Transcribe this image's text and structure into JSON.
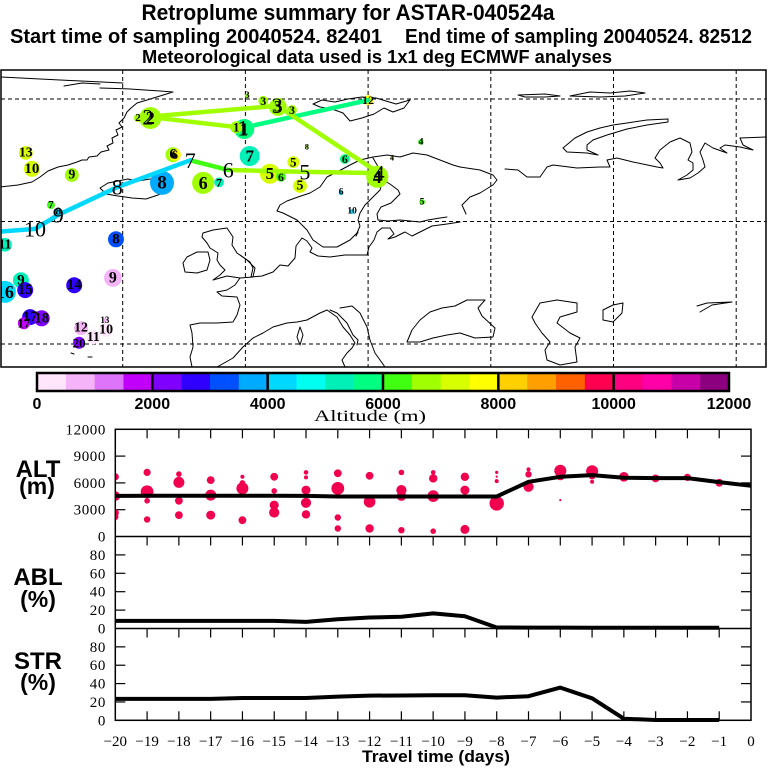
{
  "header": {
    "title": "Retroplume summary for ASTAR-040524a",
    "start_sampling": "Start time of sampling 20040524. 82401",
    "end_sampling": "End time of sampling 20040524. 82512",
    "met_data": "Meteorological data used is 1x1 deg ECMWF analyses"
  },
  "map": {
    "graticule": {
      "lons": [
        -20,
        0,
        20,
        40,
        60,
        80
      ],
      "lats": [
        80,
        60,
        40
      ]
    },
    "trajectory": [
      {
        "day": 0,
        "label": "",
        "lon": 20.0,
        "lat": 79.8,
        "alt_m": 5750
      },
      {
        "day": 1,
        "label": "1",
        "lon": -0.4,
        "lat": 75.3,
        "alt_m": 5750
      },
      {
        "day": 2,
        "label": "2",
        "lon": -15.9,
        "lat": 77.1,
        "alt_m": 6750
      },
      {
        "day": 3,
        "label": "3",
        "lon": 5.2,
        "lat": 78.9,
        "alt_m": 6750
      },
      {
        "day": 4,
        "label": "4",
        "lon": 21.8,
        "lat": 67.9,
        "alt_m": 6750
      },
      {
        "day": 5,
        "label": "5",
        "lon": 9.7,
        "lat": 68.1,
        "alt_m": 6750
      },
      {
        "day": 6,
        "label": "6",
        "lon": -2.8,
        "lat": 68.4,
        "alt_m": 6750
      },
      {
        "day": 7,
        "label": "7",
        "lon": -9.0,
        "lat": 70.0,
        "alt_m": 6250
      },
      {
        "day": 8,
        "label": "8",
        "lon": -20.9,
        "lat": 65.6,
        "alt_m": 4250
      },
      {
        "day": 9,
        "label": "9",
        "lon": -30.5,
        "lat": 61.1,
        "alt_m": 4250
      },
      {
        "day": 10,
        "label": "10",
        "lon": -34.3,
        "lat": 58.8,
        "alt_m": 4250
      },
      {
        "day": 11,
        "label": "",
        "lon": -40.6,
        "lat": 58.3,
        "alt_m": 4250
      }
    ],
    "clusters": [
      {
        "day": "1",
        "lon": -1.5,
        "lat": 75.4,
        "alt_m": 6750,
        "fraction_pct": 9
      },
      {
        "day": "1",
        "lon": -0.2,
        "lat": 75.1,
        "alt_m": 5750,
        "fraction_pct": 25
      },
      {
        "day": "2",
        "lon": -15.5,
        "lat": 76.9,
        "alt_m": 6750,
        "fraction_pct": 30
      },
      {
        "day": "2",
        "lon": -17.5,
        "lat": 76.9,
        "alt_m": 6750,
        "fraction_pct": 4
      },
      {
        "day": "3",
        "lon": 0.3,
        "lat": 80.5,
        "alt_m": 6750,
        "fraction_pct": 1.5
      },
      {
        "day": "3",
        "lon": 2.9,
        "lat": 79.7,
        "alt_m": 6750,
        "fraction_pct": 6
      },
      {
        "day": "3",
        "lon": 5.3,
        "lat": 78.7,
        "alt_m": 6750,
        "fraction_pct": 20
      },
      {
        "day": "3",
        "lon": 7.6,
        "lat": 78.2,
        "alt_m": 6750,
        "fraction_pct": 6
      },
      {
        "day": "12",
        "lon": 20.0,
        "lat": 79.8,
        "alt_m": 7750,
        "fraction_pct": 6
      },
      {
        "day": "4",
        "lon": 21.5,
        "lat": 67.3,
        "alt_m": 6750,
        "fraction_pct": 30
      },
      {
        "day": "4",
        "lon": 28.6,
        "lat": 73.0,
        "alt_m": 6250,
        "fraction_pct": 2
      },
      {
        "day": "4",
        "lon": 23.9,
        "lat": 70.4,
        "alt_m": 6750,
        "fraction_pct": 0.5
      },
      {
        "day": "5",
        "lon": 4.0,
        "lat": 67.8,
        "alt_m": 7250,
        "fraction_pct": 25
      },
      {
        "day": "5",
        "lon": 7.8,
        "lat": 69.7,
        "alt_m": 7250,
        "fraction_pct": 9
      },
      {
        "day": "5",
        "lon": 8.9,
        "lat": 65.8,
        "alt_m": 7250,
        "fraction_pct": 12
      },
      {
        "day": "5",
        "lon": 28.8,
        "lat": 63.2,
        "alt_m": 6250,
        "fraction_pct": 2
      },
      {
        "day": "6",
        "lon": -6.9,
        "lat": 66.3,
        "alt_m": 6750,
        "fraction_pct": 30
      },
      {
        "day": "6",
        "lon": -11.8,
        "lat": 70.9,
        "alt_m": 6750,
        "fraction_pct": 14
      },
      {
        "day": "6",
        "lon": -11.5,
        "lat": 70.9,
        "alt_m": 7750,
        "fraction_pct": 9
      },
      {
        "day": "6",
        "lon": 5.8,
        "lat": 67.3,
        "alt_m": 6250,
        "fraction_pct": 6
      },
      {
        "day": "6",
        "lon": 16.2,
        "lat": 70.2,
        "alt_m": 5750,
        "fraction_pct": 6
      },
      {
        "day": "6",
        "lon": 15.6,
        "lat": 64.7,
        "alt_m": 4250,
        "fraction_pct": 1.5
      },
      {
        "day": "7",
        "lon": 0.7,
        "lat": 70.7,
        "alt_m": 5250,
        "fraction_pct": 25
      },
      {
        "day": "7",
        "lon": -4.3,
        "lat": 66.4,
        "alt_m": 5250,
        "fraction_pct": 6
      },
      {
        "day": "7",
        "lon": -31.7,
        "lat": 62.7,
        "alt_m": 6250,
        "fraction_pct": 4
      },
      {
        "day": "8",
        "lon": -13.6,
        "lat": 66.3,
        "alt_m": 3750,
        "fraction_pct": 36
      },
      {
        "day": "8",
        "lon": -30.5,
        "lat": 61.6,
        "alt_m": 4250,
        "fraction_pct": 4
      },
      {
        "day": "8",
        "lon": -21.1,
        "lat": 57.1,
        "alt_m": 3250,
        "fraction_pct": 16
      },
      {
        "day": "8",
        "lon": 10.0,
        "lat": 72.2,
        "alt_m": 6750,
        "fraction_pct": 0.5
      },
      {
        "day": "9",
        "lon": -28.3,
        "lat": 67.6,
        "alt_m": 6750,
        "fraction_pct": 12
      },
      {
        "day": "9",
        "lon": -36.6,
        "lat": 50.4,
        "alt_m": 5250,
        "fraction_pct": 16
      },
      {
        "day": "9",
        "lon": -21.6,
        "lat": 50.8,
        "alt_m": 750,
        "fraction_pct": 20
      },
      {
        "day": "10",
        "lon": -34.8,
        "lat": 68.6,
        "alt_m": 7250,
        "fraction_pct": 16
      },
      {
        "day": "10",
        "lon": -22.7,
        "lat": 42.3,
        "alt_m": 250,
        "fraction_pct": 12
      },
      {
        "day": "10",
        "lon": 17.4,
        "lat": 61.6,
        "alt_m": 4250,
        "fraction_pct": 1.5
      },
      {
        "day": "11",
        "lon": -39.2,
        "lat": 56.2,
        "alt_m": 5250,
        "fraction_pct": 12
      },
      {
        "day": "11",
        "lon": -24.8,
        "lat": 41.1,
        "alt_m": 250,
        "fraction_pct": 12
      },
      {
        "day": "12",
        "lon": -26.8,
        "lat": 42.6,
        "alt_m": 750,
        "fraction_pct": 12
      },
      {
        "day": "13",
        "lon": -35.8,
        "lat": 71.2,
        "alt_m": 7250,
        "fraction_pct": 12
      },
      {
        "day": "13",
        "lon": -22.9,
        "lat": 43.9,
        "alt_m": 750,
        "fraction_pct": 1
      },
      {
        "day": "14",
        "lon": -27.9,
        "lat": 49.6,
        "alt_m": 2750,
        "fraction_pct": 16
      },
      {
        "day": "16",
        "lon": -39.2,
        "lat": 48.5,
        "alt_m": 4250,
        "fraction_pct": 30
      },
      {
        "day": "15",
        "lon": -35.9,
        "lat": 48.8,
        "alt_m": 2750,
        "fraction_pct": 16
      },
      {
        "day": "17",
        "lon": -35.1,
        "lat": 44.4,
        "alt_m": 2750,
        "fraction_pct": 16
      },
      {
        "day": "17",
        "lon": -36.1,
        "lat": 43.4,
        "alt_m": 1750,
        "fraction_pct": 9
      },
      {
        "day": "18",
        "lon": -33.2,
        "lat": 44.2,
        "alt_m": 2250,
        "fraction_pct": 16
      },
      {
        "day": "20",
        "lon": -27.1,
        "lat": 40.2,
        "alt_m": 2250,
        "fraction_pct": 9
      }
    ]
  },
  "colorbar": {
    "label": "Altitude (m)",
    "min": 0,
    "max": 12000,
    "ticks": [
      "0",
      "2000",
      "4000",
      "6000",
      "8000",
      "10000",
      "12000"
    ],
    "colors": [
      "#FFE6FA",
      "#F5B4F7",
      "#DD74FA",
      "#C000FA",
      "#8000FF",
      "#3000FF",
      "#0050FF",
      "#00AAFF",
      "#00D8FF",
      "#00FFF0",
      "#00F0B8",
      "#00FF80",
      "#40FF10",
      "#A0FF00",
      "#D8FF00",
      "#FFFF00",
      "#FFD000",
      "#FFA000",
      "#FF6000",
      "#FF0050",
      "#FF0080",
      "#FF00A8",
      "#C800A8",
      "#8C0080"
    ]
  },
  "chart_data": [
    {
      "type": "line",
      "ylabel": "ALT",
      "yunit": "(m)",
      "ylim": [
        0,
        12000
      ],
      "yticks": [
        "0",
        "3000",
        "6000",
        "9000",
        "12000"
      ],
      "xlim": [
        -20,
        0
      ],
      "x": [
        -20,
        -19,
        -18,
        -17,
        -16,
        -15,
        -14,
        -13,
        -12,
        -11,
        -10,
        -9,
        -8,
        -7,
        -6,
        -5,
        -4,
        -3,
        -2,
        -1,
        0
      ],
      "series": [
        {
          "name": "ALT",
          "color": "#000000",
          "values": [
            4550,
            4560,
            4560,
            4560,
            4560,
            4560,
            4550,
            4480,
            4480,
            4480,
            4480,
            4480,
            4480,
            6120,
            6680,
            6870,
            6570,
            6540,
            6540,
            6090,
            5680
          ]
        }
      ],
      "scatter": {
        "name": "cluster altitudes",
        "color": "#F0004E",
        "fields": [
          "day",
          "alt_m",
          "fraction_pct"
        ],
        "points": [
          [
            -20,
            6680,
            5
          ],
          [
            -20,
            4520,
            9
          ],
          [
            -20,
            2650,
            5
          ],
          [
            -20,
            2200,
            4
          ],
          [
            -19,
            7180,
            5
          ],
          [
            -19,
            5000,
            16
          ],
          [
            -19,
            4000,
            3
          ],
          [
            -19,
            1900,
            4
          ],
          [
            -18,
            6990,
            3
          ],
          [
            -18,
            6060,
            12
          ],
          [
            -18,
            4000,
            6
          ],
          [
            -18,
            2400,
            6
          ],
          [
            -17,
            6310,
            6
          ],
          [
            -17,
            4630,
            12
          ],
          [
            -17,
            2400,
            8
          ],
          [
            -16,
            6680,
            1.5
          ],
          [
            -16,
            6000,
            3
          ],
          [
            -16,
            5380,
            14
          ],
          [
            -16,
            1830,
            6
          ],
          [
            -15,
            6680,
            6
          ],
          [
            -15,
            5110,
            3
          ],
          [
            -15,
            3510,
            8
          ],
          [
            -15,
            2690,
            10
          ],
          [
            -14,
            7180,
            2
          ],
          [
            -14,
            6620,
            1.5
          ],
          [
            -14,
            5190,
            8
          ],
          [
            -14,
            3770,
            10
          ],
          [
            -14,
            2470,
            7
          ],
          [
            -13,
            7070,
            6
          ],
          [
            -13,
            5380,
            16
          ],
          [
            -13,
            2130,
            4
          ],
          [
            -13,
            900,
            4
          ],
          [
            -12,
            6800,
            6
          ],
          [
            -12,
            3880,
            13
          ],
          [
            -12,
            900,
            7
          ],
          [
            -11,
            7180,
            3
          ],
          [
            -11,
            5190,
            10
          ],
          [
            -11,
            4520,
            9
          ],
          [
            -11,
            710,
            4
          ],
          [
            -10,
            7180,
            2
          ],
          [
            -10,
            6500,
            7
          ],
          [
            -10,
            4520,
            13
          ],
          [
            -10,
            590,
            3
          ],
          [
            -9,
            6680,
            7
          ],
          [
            -9,
            5190,
            8
          ],
          [
            -9,
            790,
            8
          ],
          [
            -8,
            7180,
            1
          ],
          [
            -8,
            6700,
            0.5
          ],
          [
            -8,
            6200,
            1.5
          ],
          [
            -8,
            3700,
            20
          ],
          [
            -7,
            7510,
            1.5
          ],
          [
            -7,
            6960,
            4
          ],
          [
            -7,
            5560,
            10
          ],
          [
            -6,
            7350,
            14
          ],
          [
            -6,
            6800,
            8
          ],
          [
            -6,
            4070,
            0.5
          ],
          [
            -5,
            7300,
            14
          ],
          [
            -5,
            6800,
            5
          ],
          [
            -5,
            6120,
            1.5
          ],
          [
            -4,
            6680,
            9
          ],
          [
            -3,
            6500,
            6
          ],
          [
            -2,
            6620,
            5
          ],
          [
            -1,
            6010,
            6
          ]
        ]
      }
    },
    {
      "type": "line",
      "ylabel": "ABL",
      "yunit": "(%)",
      "ylim": [
        0,
        100
      ],
      "yticks": [
        "0",
        "20",
        "40",
        "60",
        "80"
      ],
      "xlim": [
        -20,
        0
      ],
      "x": [
        -20,
        -19,
        -18,
        -17,
        -16,
        -15,
        -14,
        -13,
        -12,
        -11,
        -10,
        -9,
        -8,
        -7,
        -6,
        -5,
        -4,
        -3,
        -2,
        -1
      ],
      "series": [
        {
          "name": "ABL",
          "color": "#000000",
          "values": [
            8.3,
            8.3,
            8.3,
            8.3,
            8.3,
            8.3,
            7.2,
            10.1,
            12.0,
            12.7,
            16.4,
            13.4,
            1.1,
            1.0,
            1.0,
            0.9,
            0.8,
            0.8,
            0.8,
            0.8
          ]
        }
      ]
    },
    {
      "type": "line",
      "ylabel": "STR",
      "yunit": "(%)",
      "ylim": [
        0,
        100
      ],
      "yticks": [
        "0",
        "20",
        "40",
        "60",
        "80"
      ],
      "xlim": [
        -20,
        0
      ],
      "x": [
        -20,
        -19,
        -18,
        -17,
        -16,
        -15,
        -14,
        -13,
        -12,
        -11,
        -10,
        -9,
        -8,
        -7,
        -6,
        -5,
        -4,
        -3,
        -2,
        -1
      ],
      "series": [
        {
          "name": "STR",
          "color": "#000000",
          "values": [
            23.3,
            23.3,
            23.3,
            23.3,
            24.3,
            24.3,
            24.3,
            25.8,
            26.9,
            27.0,
            27.2,
            27.3,
            24.7,
            26.2,
            35.6,
            24.0,
            1.7,
            0.3,
            0.3,
            0.3
          ]
        }
      ],
      "xlabel": "Travel time (days)",
      "xticklabels": [
        "−20",
        "−19",
        "−18",
        "−17",
        "−16",
        "−15",
        "−14",
        "−13",
        "−12",
        "−11",
        "−10",
        "−9",
        "−8",
        "−7",
        "−6",
        "−5",
        "−4",
        "−3",
        "−2",
        "−1",
        "0"
      ]
    }
  ]
}
